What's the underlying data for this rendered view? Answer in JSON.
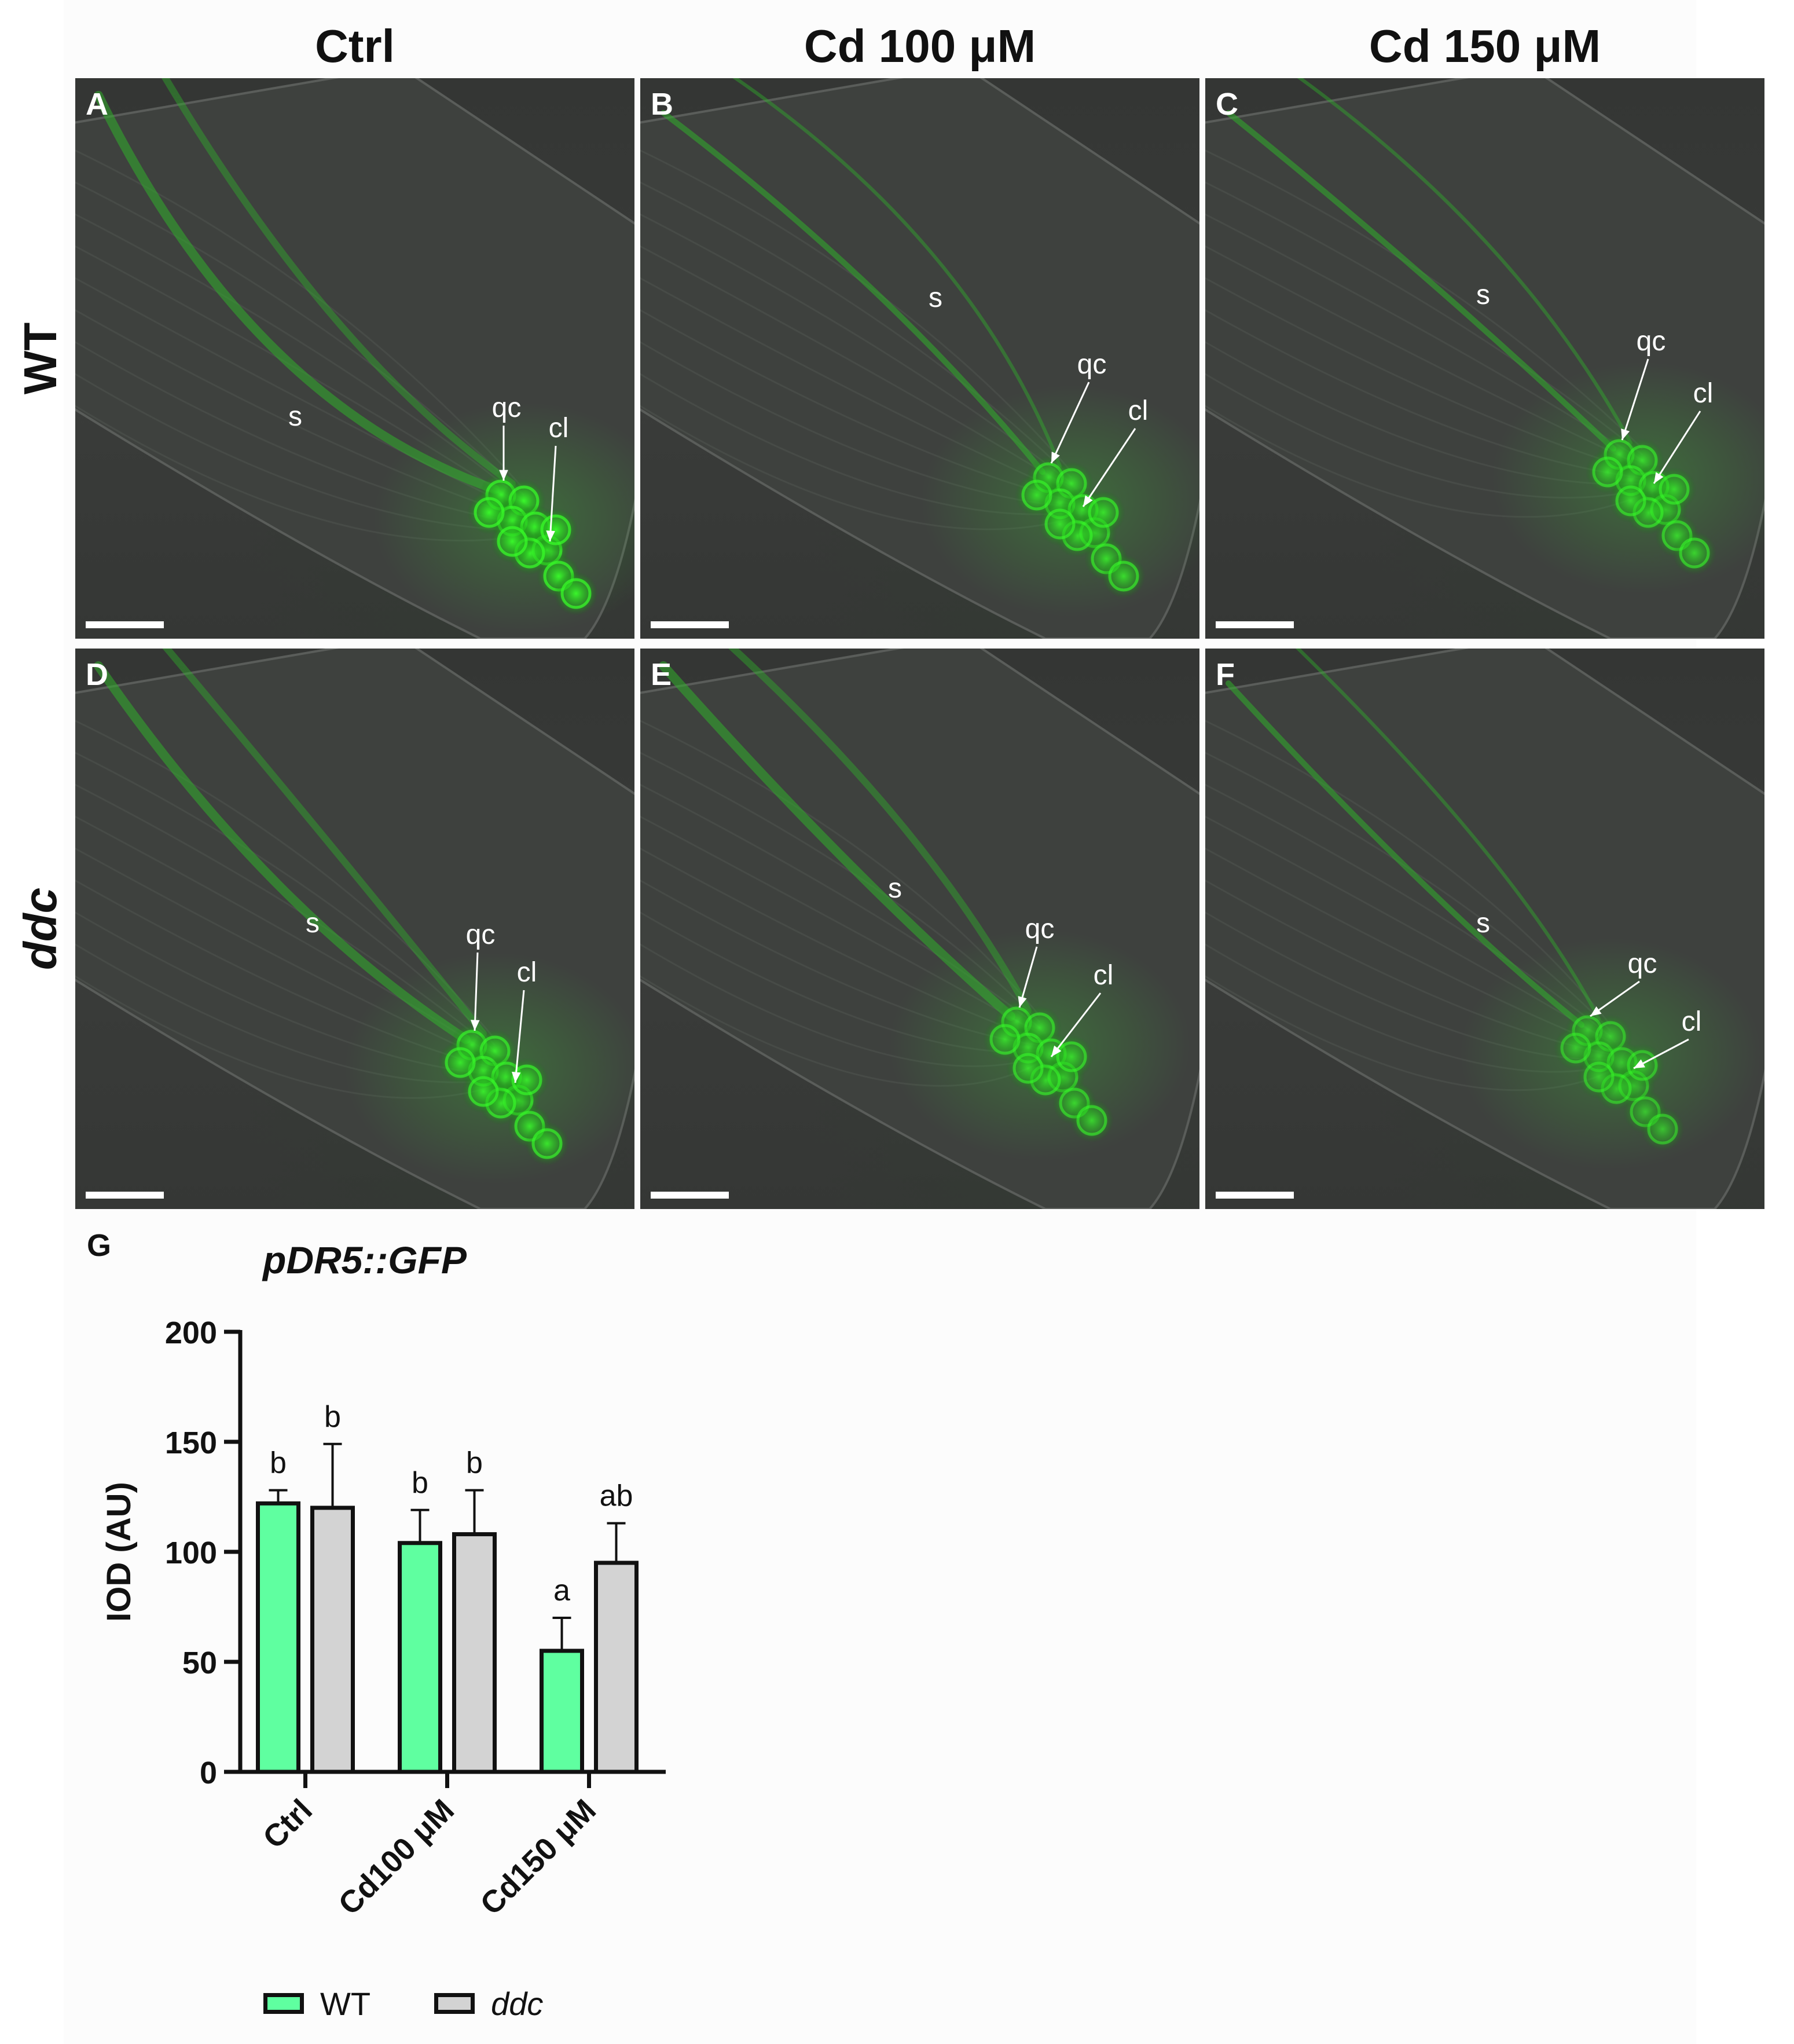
{
  "columns": [
    "Ctrl",
    "Cd 100 μM",
    "Cd 150 μM"
  ],
  "rows": [
    "WT",
    "ddc"
  ],
  "panels": [
    {
      "letter": "A",
      "labels": {
        "s": "s",
        "qc": "qc",
        "cl": "cl"
      }
    },
    {
      "letter": "B",
      "labels": {
        "s": "s",
        "qc": "qc",
        "cl": "cl"
      }
    },
    {
      "letter": "C",
      "labels": {
        "s": "s",
        "qc": "qc",
        "cl": "cl"
      }
    },
    {
      "letter": "D",
      "labels": {
        "s": "s",
        "qc": "qc",
        "cl": "cl"
      }
    },
    {
      "letter": "E",
      "labels": {
        "s": "s",
        "qc": "qc",
        "cl": "cl"
      }
    },
    {
      "letter": "F",
      "labels": {
        "s": "s",
        "qc": "qc",
        "cl": "cl"
      }
    }
  ],
  "colors": {
    "wt": "#5fffa0",
    "ddc": "#d3d3d3",
    "gfp": "#39ff2a"
  },
  "chart_data": {
    "type": "bar",
    "panel_letter": "G",
    "title": "pDR5::GFP",
    "ylabel": "IOD (AU)",
    "xlabel": "",
    "ylim": [
      0,
      200
    ],
    "yticks": [
      0,
      50,
      100,
      150,
      200
    ],
    "categories": [
      "Ctrl",
      "Cd100 μM",
      "Cd150 μM"
    ],
    "series": [
      {
        "name": "WT",
        "values": [
          122,
          104,
          55
        ],
        "errors": [
          6,
          15,
          15
        ],
        "letters": [
          "b",
          "b",
          "a"
        ]
      },
      {
        "name": "ddc",
        "values": [
          120,
          108,
          95
        ],
        "errors": [
          29,
          20,
          18
        ],
        "letters": [
          "b",
          "b",
          "ab"
        ]
      }
    ],
    "grid": false,
    "legend": "bottom"
  }
}
